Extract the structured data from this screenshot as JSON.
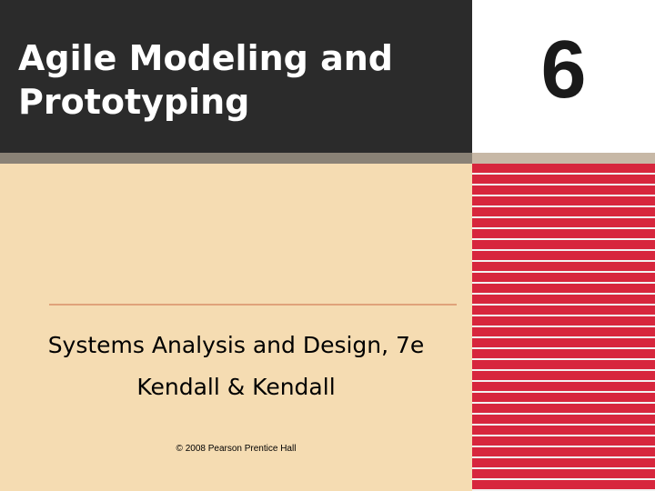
{
  "slide": {
    "title": "Agile Modeling and\nPrototyping",
    "chapter_number": "6",
    "subtitle": "Systems Analysis and Design, 7e",
    "authors": "Kendall & Kendall",
    "copyright": "© 2008 Pearson Prentice Hall"
  },
  "colors": {
    "title_band": "#2b2b2b",
    "background": "#f5dcb2",
    "stripe_red": "#d7263d",
    "divider": "#e0a27a"
  }
}
